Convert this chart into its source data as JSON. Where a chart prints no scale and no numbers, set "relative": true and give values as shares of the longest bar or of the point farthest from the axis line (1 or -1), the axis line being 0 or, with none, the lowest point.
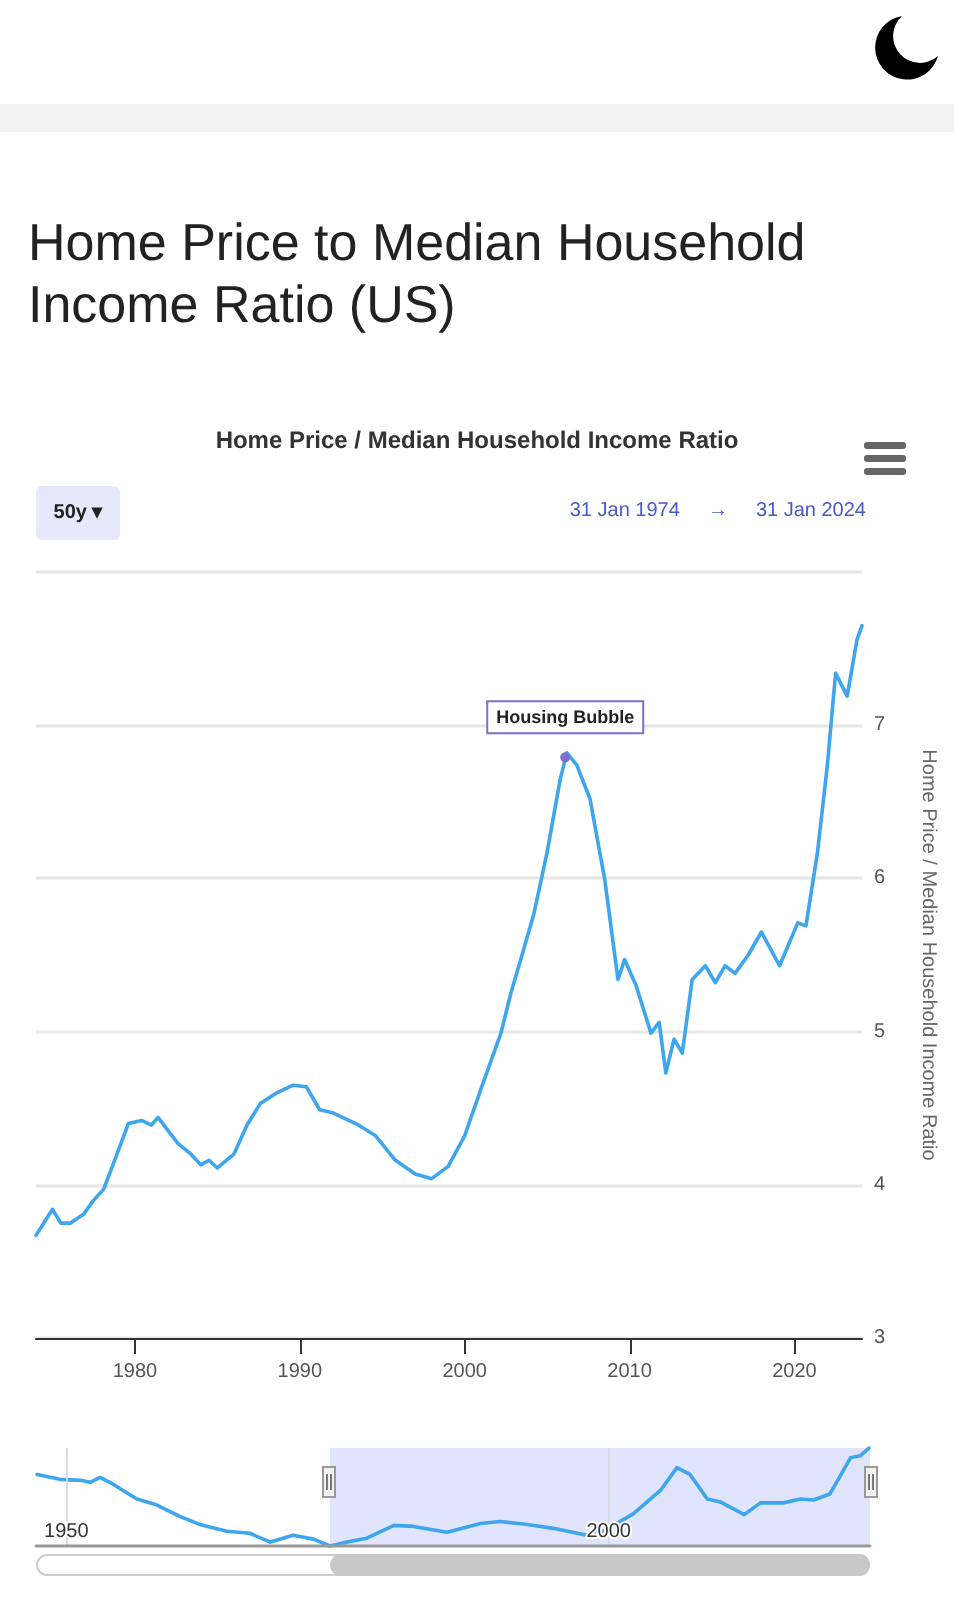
{
  "chart_data": [
    {
      "type": "line",
      "title": "Home Price to Median Household Income Ratio (US)",
      "subtitle": "Home Price / Median Household Income Ratio",
      "ylabel": "Home Price / Median Household Income Ratio",
      "annotations": [
        "50y ▾",
        "31 Jan 1974",
        "→",
        "31 Jan 2024",
        {
          "text": "Housing Bubble",
          "x": 2006.1,
          "y": 6.79
        }
      ],
      "x": [
        1974.0,
        1975.0,
        1975.5,
        1976.1,
        1976.9,
        1977.5,
        1978.1,
        1978.7,
        1979.6,
        1980.4,
        1981.0,
        1981.4,
        1982.6,
        1983.4,
        1984.0,
        1984.5,
        1985.0,
        1986.0,
        1986.8,
        1987.6,
        1988.6,
        1989.6,
        1990.4,
        1991.2,
        1992.0,
        1993.4,
        1994.6,
        1995.8,
        1997.0,
        1998.0,
        1999.0,
        2000.0,
        2001.2,
        2002.2,
        2002.8,
        2003.4,
        2004.2,
        2005.0,
        2005.8,
        2006.2,
        2006.8,
        2007.6,
        2008.5,
        2009.3,
        2009.7,
        2010.4,
        2011.3,
        2011.8,
        2012.2,
        2012.7,
        2013.2,
        2013.8,
        2014.6,
        2015.2,
        2015.8,
        2016.4,
        2017.2,
        2018.0,
        2019.1,
        2020.2,
        2020.7,
        2021.4,
        2022.0,
        2022.5,
        2023.2,
        2023.8,
        2024.1
      ],
      "series": [
        {
          "color": "#3ea6ec",
          "values": [
            3.67,
            3.84,
            3.75,
            3.75,
            3.81,
            3.9,
            3.97,
            4.14,
            4.4,
            4.42,
            4.39,
            4.44,
            4.27,
            4.2,
            4.13,
            4.16,
            4.11,
            4.2,
            4.39,
            4.53,
            4.6,
            4.65,
            4.64,
            4.49,
            4.47,
            4.4,
            4.32,
            4.16,
            4.07,
            4.04,
            4.12,
            4.32,
            4.69,
            4.99,
            5.25,
            5.47,
            5.77,
            6.17,
            6.65,
            6.82,
            6.74,
            6.52,
            5.99,
            5.34,
            5.47,
            5.3,
            4.99,
            5.06,
            4.73,
            4.95,
            4.86,
            5.34,
            5.43,
            5.32,
            5.43,
            5.38,
            5.5,
            5.65,
            5.43,
            5.71,
            5.69,
            6.17,
            6.74,
            7.34,
            7.19,
            7.56,
            7.65
          ]
        }
      ],
      "xlim": [
        1974,
        2024.1
      ],
      "xticks": [
        1980,
        1990,
        2000,
        2010,
        2020
      ],
      "ylim": [
        3,
        8
      ],
      "yticks": [
        3,
        4,
        5,
        6,
        7,
        {
          "value": 8,
          "label": null
        }
      ],
      "grid": "y",
      "marker": "none",
      "line_style": "solid"
    },
    {
      "type": "line",
      "relative": true,
      "x": [
        1947.3,
        1949.4,
        1951.3,
        1952.2,
        1953.1,
        1954.0,
        1956.5,
        1958.3,
        1960.5,
        1962.3,
        1964.8,
        1966.9,
        1968.8,
        1970.9,
        1972.8,
        1974.3,
        1975.9,
        1977.7,
        1980.2,
        1982.0,
        1985.1,
        1988.2,
        1990.0,
        1992.5,
        1994.9,
        1998.0,
        1999.5,
        2002.3,
        2004.8,
        2006.3,
        2007.5,
        2009.1,
        2010.3,
        2012.5,
        2014.0,
        2016.1,
        2017.7,
        2018.9,
        2020.4,
        2022.3,
        2023.2,
        2024.0
      ],
      "series": [
        {
          "color": "#3ea6ec",
          "values": [
            0.73,
            0.68,
            0.67,
            0.65,
            0.7,
            0.65,
            0.48,
            0.42,
            0.3,
            0.22,
            0.15,
            0.13,
            0.04,
            0.11,
            0.07,
            0,
            0.04,
            0.08,
            0.21,
            0.2,
            0.14,
            0.23,
            0.25,
            0.22,
            0.18,
            0.11,
            0.15,
            0.33,
            0.57,
            0.8,
            0.73,
            0.48,
            0.45,
            0.32,
            0.44,
            0.44,
            0.48,
            0.47,
            0.53,
            0.9,
            0.92,
            1
          ]
        }
      ],
      "xlim": [
        1947.2,
        2024.1
      ],
      "xticks": [
        1950,
        2000
      ],
      "bands": [
        {
          "axis": "x",
          "from": 1974.3,
          "to": 2024.1,
          "color": "#ccd4fb"
        }
      ],
      "grid": "x",
      "marker": "none"
    }
  ]
}
